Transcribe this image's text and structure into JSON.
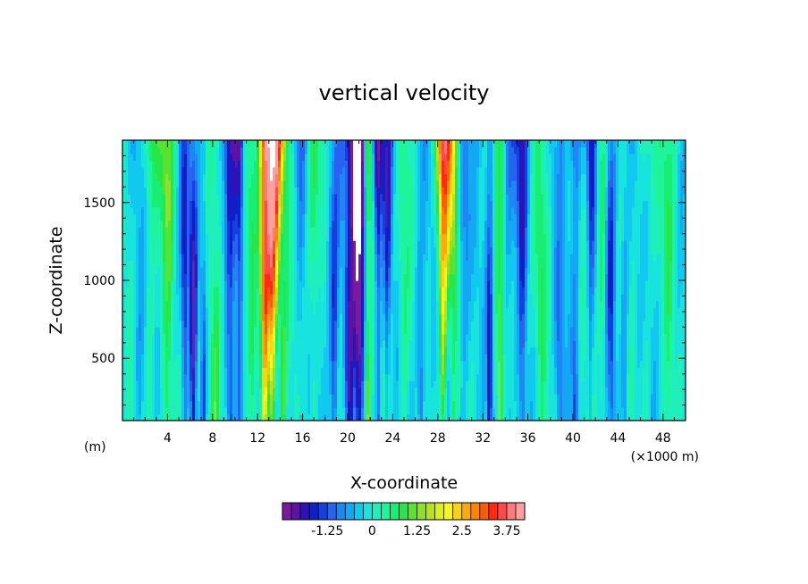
{
  "chart_data": {
    "type": "heatmap",
    "title": "vertical velocity",
    "xlabel": "X-coordinate",
    "ylabel": "Z-coordinate",
    "x_unit_label": "(m)",
    "x_scale_label": "(×1000 m)",
    "xlim": [
      0,
      50
    ],
    "ylim": [
      100,
      1900
    ],
    "x_ticks": [
      4,
      8,
      12,
      16,
      20,
      24,
      28,
      32,
      36,
      40,
      44,
      48
    ],
    "x_tick_labels": [
      "4",
      "8",
      "12",
      "16",
      "20",
      "24",
      "28",
      "32",
      "36",
      "40",
      "44",
      "48"
    ],
    "y_ticks": [
      500,
      1000,
      1500
    ],
    "y_tick_labels": [
      "500",
      "1000",
      "1500"
    ],
    "field": {
      "background_value": 0.1,
      "features": [
        {
          "x": 1.5,
          "width": 0.5,
          "amp": -0.4
        },
        {
          "x": 2.5,
          "width": 0.5,
          "amp": 0.9
        },
        {
          "x": 4.0,
          "width": 0.5,
          "amp": 1.1
        },
        {
          "x": 5.5,
          "width": 0.3,
          "amp": -1.1
        },
        {
          "x": 6.3,
          "width": 0.35,
          "amp": -1.6
        },
        {
          "x": 7.2,
          "width": 0.3,
          "amp": -1.0
        },
        {
          "x": 8.3,
          "width": 0.5,
          "amp": 0.9
        },
        {
          "x": 9.6,
          "width": 0.45,
          "amp": -1.5
        },
        {
          "x": 10.4,
          "width": 0.3,
          "amp": -1.4
        },
        {
          "x": 11.5,
          "width": 0.4,
          "amp": 0.6
        },
        {
          "x": 12.6,
          "width": 0.4,
          "amp": 2.5
        },
        {
          "x": 13.3,
          "width": 0.55,
          "amp": 4.2
        },
        {
          "x": 14.3,
          "width": 0.4,
          "amp": 1.2
        },
        {
          "x": 15.8,
          "width": 0.4,
          "amp": -0.7
        },
        {
          "x": 17.0,
          "width": 0.5,
          "amp": 0.8
        },
        {
          "x": 18.8,
          "width": 0.5,
          "amp": -1.3
        },
        {
          "x": 20.2,
          "width": 0.6,
          "amp": -1.7
        },
        {
          "x": 21.0,
          "width": 0.5,
          "amp": -2.2
        },
        {
          "x": 21.8,
          "width": 0.3,
          "amp": 1.6
        },
        {
          "x": 22.7,
          "width": 0.3,
          "amp": -1.8
        },
        {
          "x": 23.5,
          "width": 0.3,
          "amp": -1.3
        },
        {
          "x": 25.0,
          "width": 0.5,
          "amp": 0.6
        },
        {
          "x": 26.5,
          "width": 0.5,
          "amp": -0.9
        },
        {
          "x": 28.5,
          "width": 0.45,
          "amp": 3.0
        },
        {
          "x": 29.4,
          "width": 0.4,
          "amp": 1.2
        },
        {
          "x": 30.3,
          "width": 0.5,
          "amp": -0.7
        },
        {
          "x": 32.6,
          "width": 0.3,
          "amp": -1.6
        },
        {
          "x": 33.5,
          "width": 0.3,
          "amp": 1.5
        },
        {
          "x": 34.3,
          "width": 0.5,
          "amp": -0.6
        },
        {
          "x": 35.5,
          "width": 0.4,
          "amp": -1.4
        },
        {
          "x": 37.2,
          "width": 0.5,
          "amp": 0.6
        },
        {
          "x": 38.8,
          "width": 0.5,
          "amp": -0.7
        },
        {
          "x": 40.2,
          "width": 0.4,
          "amp": -1.2
        },
        {
          "x": 41.6,
          "width": 0.3,
          "amp": -1.3
        },
        {
          "x": 42.6,
          "width": 0.3,
          "amp": 0.9
        },
        {
          "x": 43.4,
          "width": 0.4,
          "amp": -1.1
        },
        {
          "x": 44.6,
          "width": 0.4,
          "amp": -0.6
        },
        {
          "x": 46.5,
          "width": 0.5,
          "amp": 0.4
        },
        {
          "x": 48.5,
          "width": 0.5,
          "amp": 0.6
        }
      ]
    },
    "colorbar": {
      "min": -2.0,
      "max": 4.0,
      "step": 0.25,
      "tick_values": [
        -1.25,
        0,
        1.25,
        2.5,
        3.75
      ],
      "tick_labels": [
        "-1.25",
        "0",
        "1.25",
        "2.5",
        "3.75"
      ],
      "colors": [
        "#7a1a9e",
        "#5a13a5",
        "#2a14b7",
        "#1020c9",
        "#1540e0",
        "#2563f0",
        "#1f86f5",
        "#12a8f3",
        "#11c8ee",
        "#18e3dc",
        "#1ff0bb",
        "#1ef49a",
        "#17ee73",
        "#27e64b",
        "#5ae231",
        "#8ee02a",
        "#b9e21e",
        "#def016",
        "#fff51a",
        "#ffd20e",
        "#ffaa0c",
        "#ff820a",
        "#ff5a0a",
        "#ff2a12",
        "#ff4a4a",
        "#ff7a7a",
        "#ffa0a0"
      ]
    }
  }
}
